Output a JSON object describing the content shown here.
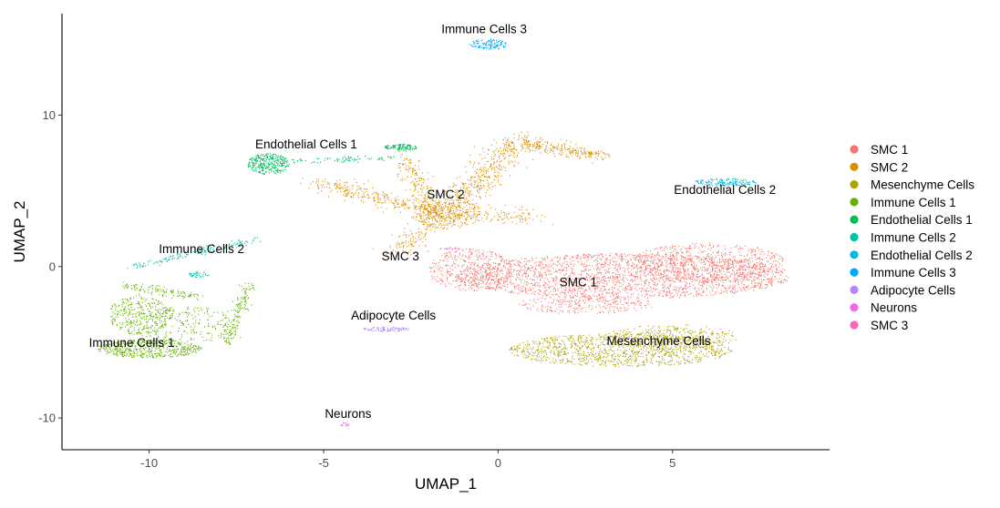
{
  "chart_data": {
    "type": "scatter",
    "title": "",
    "xlabel": "UMAP_1",
    "ylabel": "UMAP_2",
    "xlim": [
      -12.5,
      9.5
    ],
    "ylim": [
      -12.1,
      16.7
    ],
    "xticks": [
      -10,
      -5,
      0,
      5
    ],
    "yticks": [
      -10,
      0,
      10
    ],
    "grid": false,
    "legend_position": "right",
    "series": [
      {
        "name": "SMC 1",
        "color": "#F8766D",
        "label_x": 2.3,
        "label_y": -1.3
      },
      {
        "name": "SMC 2",
        "color": "#DB8E00",
        "label_x": -1.5,
        "label_y": 4.5
      },
      {
        "name": "Mesenchyme Cells",
        "color": "#AEA200",
        "label_x": 4.6,
        "label_y": -5.2
      },
      {
        "name": "Immune Cells 1",
        "color": "#64B200",
        "label_x": -10.5,
        "label_y": -5.3
      },
      {
        "name": "Endothelial Cells 1",
        "color": "#00BD5C",
        "label_x": -5.5,
        "label_y": 7.8
      },
      {
        "name": "Immune Cells 2",
        "color": "#00C1A7",
        "label_x": -8.5,
        "label_y": 0.9
      },
      {
        "name": "Endothelial Cells 2",
        "color": "#00BADE",
        "label_x": 6.5,
        "label_y": 4.8
      },
      {
        "name": "Immune Cells 3",
        "color": "#00A6FF",
        "label_x": -0.4,
        "label_y": 15.4
      },
      {
        "name": "Adipocyte Cells",
        "color": "#B385FF",
        "label_x": -3.0,
        "label_y": -3.5
      },
      {
        "name": "Neurons",
        "color": "#EF67EB",
        "label_x": -4.3,
        "label_y": -10.0
      },
      {
        "name": "SMC 3",
        "color": "#FF63B6",
        "label_x": -2.8,
        "label_y": 0.4
      }
    ]
  }
}
